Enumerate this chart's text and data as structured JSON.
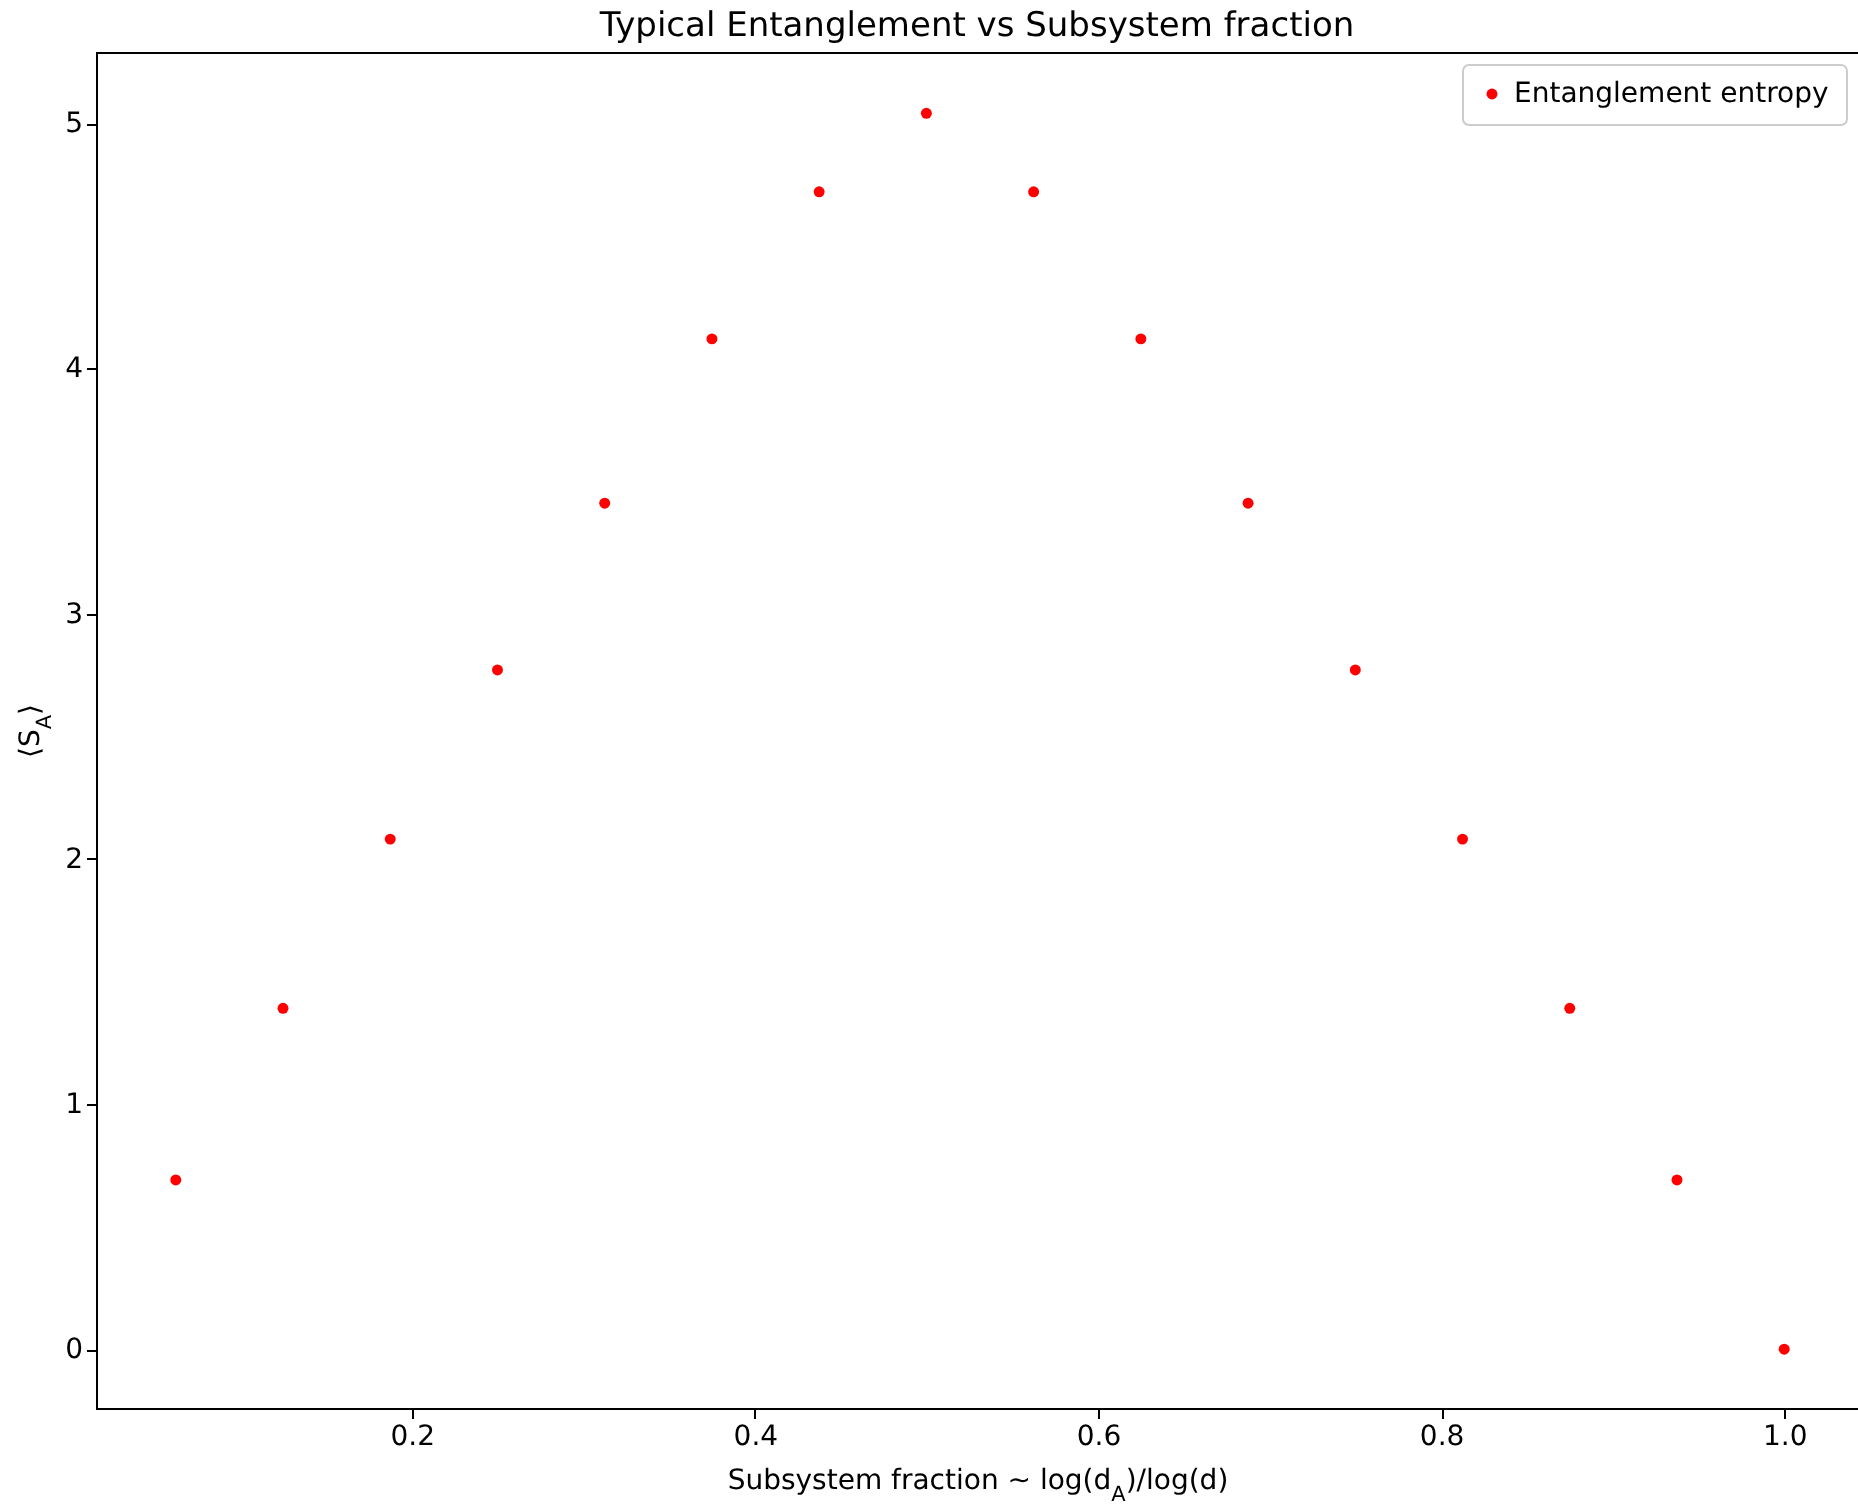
{
  "chart_data": {
    "type": "scatter",
    "title": "Typical Entanglement vs Subsystem fraction",
    "xlabel": "Subsystem fraction ~ log(d$_{A}$)/log(d)",
    "ylabel": "⟨S$_{A}$⟩",
    "x": [
      0.0625,
      0.125,
      0.1875,
      0.25,
      0.3125,
      0.375,
      0.4375,
      0.5,
      0.5625,
      0.625,
      0.6875,
      0.75,
      0.8125,
      0.875,
      0.9375,
      1.0
    ],
    "series": [
      {
        "name": "Entanglement entropy",
        "color": "#ff0000",
        "values": [
          0.69,
          1.39,
          2.08,
          2.77,
          3.45,
          4.12,
          4.72,
          5.04,
          4.72,
          4.12,
          3.45,
          2.77,
          2.08,
          1.39,
          0.69,
          0.0
        ]
      }
    ],
    "xlim": [
      0.016,
      1.043
    ],
    "ylim": [
      -0.24,
      5.29
    ],
    "xticks": [
      0.2,
      0.4,
      0.6,
      0.8,
      {
        "value": 1,
        "label": "1.0"
      }
    ],
    "yticks": [
      0,
      1,
      2,
      3,
      4,
      5
    ],
    "grid": false,
    "legend": "top right",
    "marker": "circle"
  }
}
